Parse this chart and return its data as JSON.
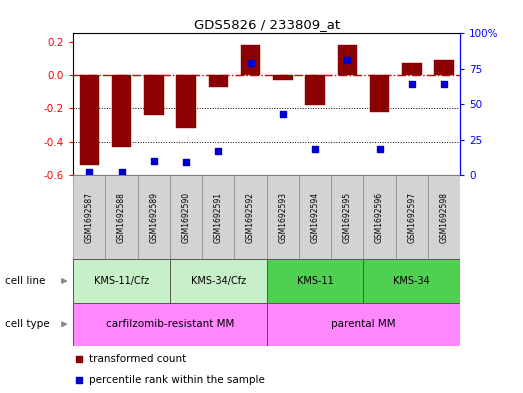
{
  "title": "GDS5826 / 233809_at",
  "samples": [
    "GSM1692587",
    "GSM1692588",
    "GSM1692589",
    "GSM1692590",
    "GSM1692591",
    "GSM1692592",
    "GSM1692593",
    "GSM1692594",
    "GSM1692595",
    "GSM1692596",
    "GSM1692597",
    "GSM1692598"
  ],
  "transformed_count": [
    -0.54,
    -0.43,
    -0.24,
    -0.32,
    -0.07,
    0.18,
    -0.03,
    -0.18,
    0.18,
    -0.22,
    0.07,
    0.09
  ],
  "percentile_rank": [
    2,
    2,
    10,
    9,
    17,
    79,
    43,
    18,
    81,
    18,
    64,
    64
  ],
  "bar_color": "#8B0000",
  "dot_color": "#0000CC",
  "ref_line_color": "#CC0000",
  "grid_color": "#000000",
  "ylim_left": [
    -0.6,
    0.25
  ],
  "ylim_right": [
    0,
    100
  ],
  "yticks_left": [
    -0.6,
    -0.4,
    -0.2,
    0.0,
    0.2
  ],
  "yticks_right": [
    0,
    25,
    50,
    75,
    100
  ],
  "cell_line_groups": [
    {
      "label": "KMS-11/Cfz",
      "start": 0,
      "end": 2,
      "color": "#C8F0C8"
    },
    {
      "label": "KMS-34/Cfz",
      "start": 3,
      "end": 5,
      "color": "#C8F0C8"
    },
    {
      "label": "KMS-11",
      "start": 6,
      "end": 8,
      "color": "#50D050"
    },
    {
      "label": "KMS-34",
      "start": 9,
      "end": 11,
      "color": "#50D050"
    }
  ],
  "cell_type_groups": [
    {
      "label": "carfilzomib-resistant MM",
      "start": 0,
      "end": 5,
      "color": "#FF88FF"
    },
    {
      "label": "parental MM",
      "start": 6,
      "end": 11,
      "color": "#FF88FF"
    }
  ],
  "legend_red": "transformed count",
  "legend_blue": "percentile rank within the sample",
  "bg_color": "#FFFFFF"
}
